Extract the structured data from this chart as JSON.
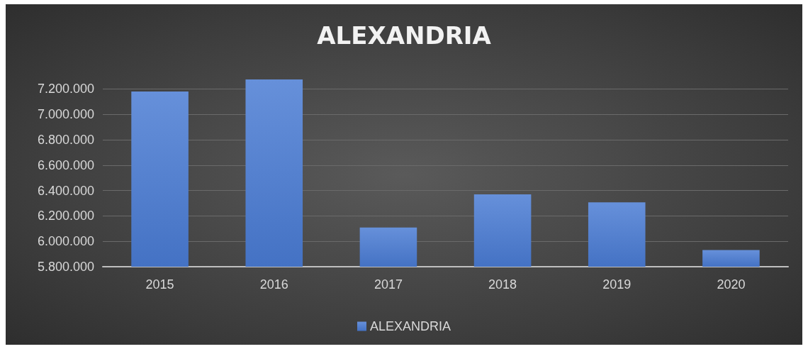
{
  "chart_data": {
    "type": "bar",
    "title": "ALEXANDRIA",
    "categories": [
      "2015",
      "2016",
      "2017",
      "2018",
      "2019",
      "2020"
    ],
    "series": [
      {
        "name": "ALEXANDRIA",
        "color": "#4472c4",
        "values": [
          7180000,
          7275000,
          6108000,
          6370000,
          6307000,
          5931000
        ]
      }
    ],
    "ylim": [
      5800000,
      7275000
    ],
    "yticks": [
      {
        "value": 5800000,
        "label": "5.800.000"
      },
      {
        "value": 6000000,
        "label": "6.000.000"
      },
      {
        "value": 6200000,
        "label": "6.200.000"
      },
      {
        "value": 6400000,
        "label": "6.400.000"
      },
      {
        "value": 6600000,
        "label": "6.600.000"
      },
      {
        "value": 6800000,
        "label": "6.800.000"
      },
      {
        "value": 7000000,
        "label": "7.000.000"
      },
      {
        "value": 7200000,
        "label": "7.200.000"
      }
    ],
    "grid": "y",
    "legend": "bottom"
  }
}
